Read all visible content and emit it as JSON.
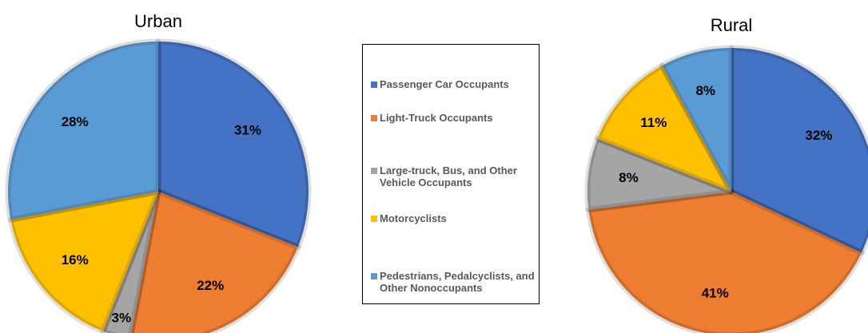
{
  "chart_data": [
    {
      "type": "pie",
      "title": "Urban",
      "categories": [
        "Passenger Car Occupants",
        "Light-Truck Occupants",
        "Large-truck, Bus, and Other Vehicle Occupants",
        "Motorcyclists",
        "Pedestrians, Pedalcyclists, and Other Nonoccupants"
      ],
      "values": [
        31,
        22,
        3,
        16,
        28
      ],
      "value_labels": [
        "31%",
        "22%",
        "3%",
        "16%",
        "28%"
      ],
      "colors": [
        "#4472c4",
        "#ed7d31",
        "#a5a5a5",
        "#ffc000",
        "#5b9bd5"
      ],
      "legend": "center"
    },
    {
      "type": "pie",
      "title": "Rural",
      "categories": [
        "Passenger Car Occupants",
        "Light-Truck Occupants",
        "Large-truck, Bus, and Other Vehicle Occupants",
        "Motorcyclists",
        "Pedestrians, Pedalcyclists, and Other Nonoccupants"
      ],
      "values": [
        32,
        41,
        8,
        11,
        8
      ],
      "value_labels": [
        "32%",
        "41%",
        "8%",
        "11%",
        "8%"
      ],
      "colors": [
        "#4472c4",
        "#ed7d31",
        "#a5a5a5",
        "#ffc000",
        "#5b9bd5"
      ]
    }
  ]
}
